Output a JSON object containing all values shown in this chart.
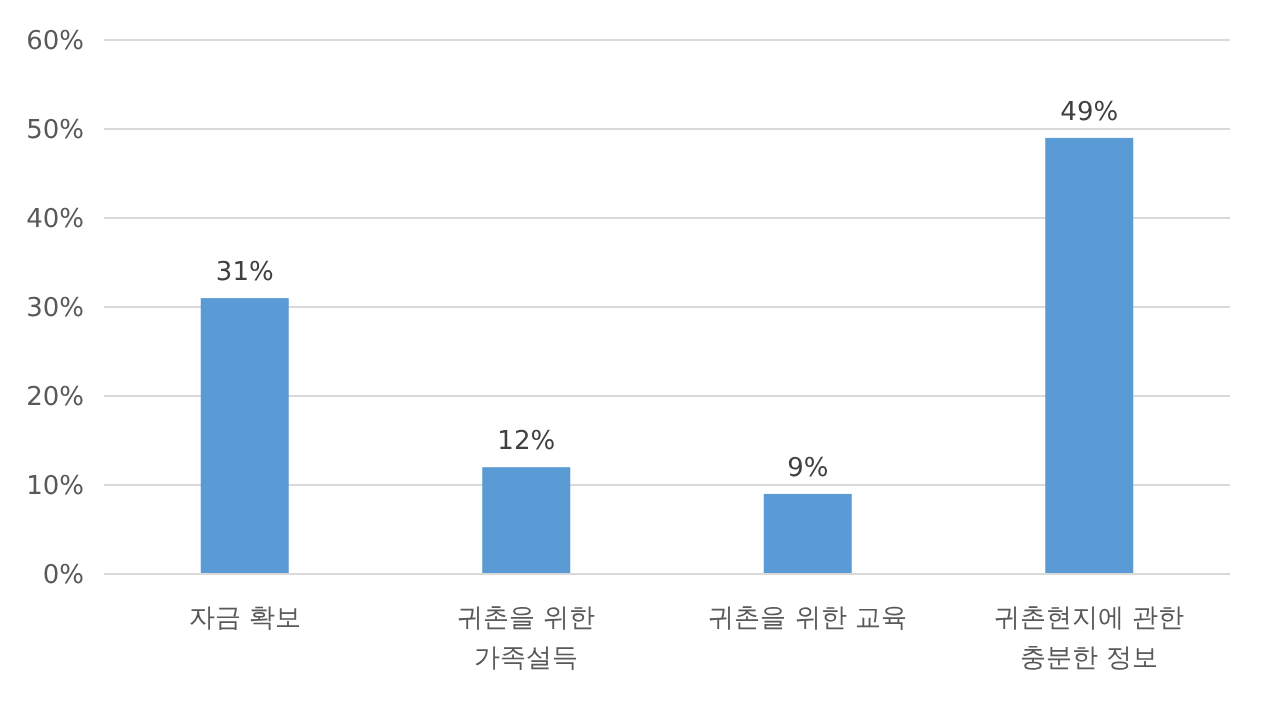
{
  "chart_data": {
    "type": "bar",
    "categories": [
      "자금 확보",
      "귀촌을 위한 가족설득",
      "귀촌을 위한 교육",
      "귀촌현지에 관한 충분한 정보"
    ],
    "values": [
      31,
      12,
      9,
      49
    ],
    "value_labels": [
      "31%",
      "12%",
      "9%",
      "49%"
    ],
    "color": "#5b9bd5",
    "ylim": [
      0,
      60
    ],
    "yticks": [
      {
        "value": 0,
        "label": "0%"
      },
      {
        "value": 10,
        "label": "10%"
      },
      {
        "value": 20,
        "label": "20%"
      },
      {
        "value": 30,
        "label": "30%"
      },
      {
        "value": 40,
        "label": "40%"
      },
      {
        "value": 50,
        "label": "50%"
      },
      {
        "value": 60,
        "label": "60%"
      }
    ],
    "grid": "y"
  }
}
